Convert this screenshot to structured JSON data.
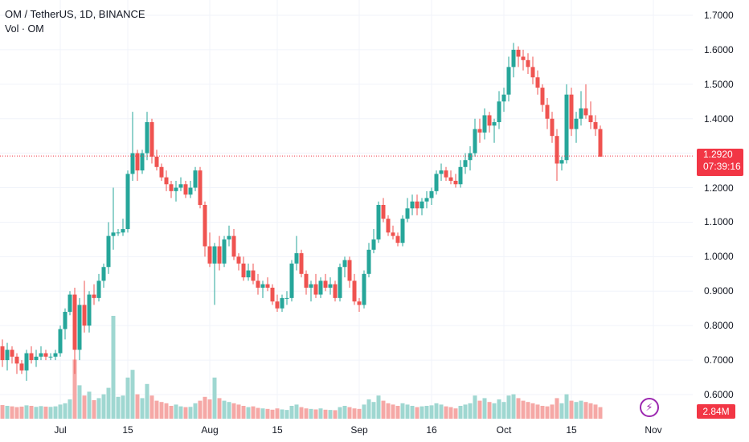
{
  "header": {
    "symbol_line": "OM / TetherUS, 1D, BINANCE",
    "volume_line": "Vol · OM"
  },
  "last_price": {
    "value": "1.2920",
    "countdown": "07:39:16"
  },
  "volume_last": "2.84M",
  "colors": {
    "up": "#26a69a",
    "down": "#ef5350",
    "vol_up": "#9fd7d1",
    "vol_down": "#f5a8a6",
    "grid": "#f0f3fa",
    "price_line": "#f23645"
  },
  "chart_data": {
    "type": "candlestick",
    "ylim": [
      0.58,
      1.72
    ],
    "y_ticks": [
      "1.7000",
      "1.6000",
      "1.5000",
      "1.4000",
      "1.3000",
      "1.2000",
      "1.1000",
      "1.0000",
      "0.9000",
      "0.8000",
      "0.7000",
      "0.6000"
    ],
    "x_ticks": [
      {
        "label": "Jul",
        "index": 12
      },
      {
        "label": "15",
        "index": 26
      },
      {
        "label": "Aug",
        "index": 43
      },
      {
        "label": "15",
        "index": 57
      },
      {
        "label": "Sep",
        "index": 74
      },
      {
        "label": "16",
        "index": 89
      },
      {
        "label": "Oct",
        "index": 104
      },
      {
        "label": "15",
        "index": 118
      },
      {
        "label": "Nov",
        "index": 135
      }
    ],
    "candles": [
      [
        0.74,
        0.76,
        0.68,
        0.7
      ],
      [
        0.7,
        0.75,
        0.67,
        0.73
      ],
      [
        0.73,
        0.74,
        0.69,
        0.71
      ],
      [
        0.71,
        0.72,
        0.66,
        0.69
      ],
      [
        0.69,
        0.7,
        0.66,
        0.67
      ],
      [
        0.67,
        0.73,
        0.64,
        0.72
      ],
      [
        0.72,
        0.74,
        0.69,
        0.7
      ],
      [
        0.7,
        0.73,
        0.68,
        0.71
      ],
      [
        0.71,
        0.74,
        0.7,
        0.72
      ],
      [
        0.72,
        0.73,
        0.7,
        0.71
      ],
      [
        0.71,
        0.72,
        0.7,
        0.71
      ],
      [
        0.71,
        0.73,
        0.7,
        0.72
      ],
      [
        0.72,
        0.8,
        0.71,
        0.79
      ],
      [
        0.79,
        0.85,
        0.76,
        0.84
      ],
      [
        0.84,
        0.9,
        0.83,
        0.89
      ],
      [
        0.89,
        0.91,
        0.66,
        0.73
      ],
      [
        0.73,
        0.88,
        0.7,
        0.86
      ],
      [
        0.86,
        0.93,
        0.78,
        0.8
      ],
      [
        0.8,
        0.9,
        0.78,
        0.89
      ],
      [
        0.89,
        0.92,
        0.86,
        0.88
      ],
      [
        0.88,
        0.95,
        0.87,
        0.93
      ],
      [
        0.93,
        0.98,
        0.91,
        0.97
      ],
      [
        0.97,
        1.1,
        0.95,
        1.06
      ],
      [
        1.06,
        1.2,
        1.02,
        1.07
      ],
      [
        1.07,
        1.08,
        1.06,
        1.07
      ],
      [
        1.07,
        1.11,
        1.06,
        1.08
      ],
      [
        1.08,
        1.25,
        1.07,
        1.24
      ],
      [
        1.24,
        1.42,
        1.22,
        1.3
      ],
      [
        1.3,
        1.31,
        1.22,
        1.25
      ],
      [
        1.25,
        1.31,
        1.24,
        1.3
      ],
      [
        1.3,
        1.42,
        1.28,
        1.39
      ],
      [
        1.39,
        1.4,
        1.27,
        1.29
      ],
      [
        1.29,
        1.31,
        1.25,
        1.26
      ],
      [
        1.26,
        1.27,
        1.22,
        1.23
      ],
      [
        1.23,
        1.25,
        1.19,
        1.21
      ],
      [
        1.21,
        1.22,
        1.17,
        1.19
      ],
      [
        1.19,
        1.22,
        1.16,
        1.2
      ],
      [
        1.2,
        1.23,
        1.19,
        1.21
      ],
      [
        1.21,
        1.22,
        1.17,
        1.18
      ],
      [
        1.18,
        1.22,
        1.17,
        1.2
      ],
      [
        1.2,
        1.26,
        1.19,
        1.25
      ],
      [
        1.25,
        1.26,
        1.14,
        1.15
      ],
      [
        1.15,
        1.16,
        1.0,
        1.03
      ],
      [
        1.03,
        1.07,
        0.97,
        0.98
      ],
      [
        0.98,
        1.04,
        0.86,
        1.03
      ],
      [
        1.03,
        1.06,
        0.96,
        0.98
      ],
      [
        0.98,
        1.06,
        0.97,
        1.05
      ],
      [
        1.05,
        1.09,
        1.03,
        1.06
      ],
      [
        1.06,
        1.08,
        0.99,
        1.0
      ],
      [
        1.0,
        1.01,
        0.96,
        0.98
      ],
      [
        0.98,
        1.0,
        0.93,
        0.94
      ],
      [
        0.94,
        0.98,
        0.93,
        0.96
      ],
      [
        0.96,
        0.98,
        0.92,
        0.93
      ],
      [
        0.93,
        0.95,
        0.89,
        0.91
      ],
      [
        0.91,
        0.93,
        0.88,
        0.92
      ],
      [
        0.92,
        0.94,
        0.9,
        0.91
      ],
      [
        0.91,
        0.92,
        0.86,
        0.87
      ],
      [
        0.87,
        0.89,
        0.84,
        0.85
      ],
      [
        0.85,
        0.89,
        0.84,
        0.88
      ],
      [
        0.88,
        0.9,
        0.86,
        0.88
      ],
      [
        0.88,
        0.99,
        0.87,
        0.98
      ],
      [
        0.98,
        1.06,
        0.96,
        1.01
      ],
      [
        1.01,
        1.02,
        0.94,
        0.95
      ],
      [
        0.95,
        0.96,
        0.89,
        0.91
      ],
      [
        0.91,
        0.93,
        0.87,
        0.92
      ],
      [
        0.92,
        0.95,
        0.88,
        0.89
      ],
      [
        0.89,
        0.94,
        0.88,
        0.93
      ],
      [
        0.93,
        0.95,
        0.9,
        0.91
      ],
      [
        0.91,
        0.94,
        0.89,
        0.92
      ],
      [
        0.92,
        0.93,
        0.87,
        0.88
      ],
      [
        0.88,
        0.98,
        0.87,
        0.97
      ],
      [
        0.97,
        1.0,
        0.94,
        0.99
      ],
      [
        0.99,
        1.0,
        0.91,
        0.93
      ],
      [
        0.93,
        0.95,
        0.86,
        0.87
      ],
      [
        0.87,
        0.88,
        0.84,
        0.86
      ],
      [
        0.86,
        0.96,
        0.85,
        0.95
      ],
      [
        0.95,
        1.04,
        0.94,
        1.02
      ],
      [
        1.02,
        1.08,
        1.01,
        1.05
      ],
      [
        1.05,
        1.16,
        1.04,
        1.15
      ],
      [
        1.15,
        1.17,
        1.1,
        1.11
      ],
      [
        1.11,
        1.12,
        1.06,
        1.07
      ],
      [
        1.07,
        1.09,
        1.05,
        1.06
      ],
      [
        1.06,
        1.07,
        1.03,
        1.04
      ],
      [
        1.04,
        1.12,
        1.03,
        1.11
      ],
      [
        1.11,
        1.17,
        1.1,
        1.14
      ],
      [
        1.14,
        1.18,
        1.12,
        1.16
      ],
      [
        1.16,
        1.18,
        1.12,
        1.14
      ],
      [
        1.14,
        1.17,
        1.12,
        1.16
      ],
      [
        1.16,
        1.19,
        1.14,
        1.17
      ],
      [
        1.17,
        1.2,
        1.15,
        1.19
      ],
      [
        1.19,
        1.25,
        1.18,
        1.24
      ],
      [
        1.24,
        1.27,
        1.22,
        1.25
      ],
      [
        1.25,
        1.26,
        1.22,
        1.23
      ],
      [
        1.23,
        1.25,
        1.21,
        1.22
      ],
      [
        1.22,
        1.24,
        1.2,
        1.21
      ],
      [
        1.21,
        1.28,
        1.2,
        1.26
      ],
      [
        1.26,
        1.3,
        1.24,
        1.28
      ],
      [
        1.28,
        1.32,
        1.25,
        1.3
      ],
      [
        1.3,
        1.4,
        1.29,
        1.37
      ],
      [
        1.37,
        1.4,
        1.33,
        1.36
      ],
      [
        1.36,
        1.43,
        1.34,
        1.41
      ],
      [
        1.41,
        1.42,
        1.36,
        1.38
      ],
      [
        1.38,
        1.4,
        1.33,
        1.39
      ],
      [
        1.39,
        1.48,
        1.37,
        1.45
      ],
      [
        1.45,
        1.49,
        1.42,
        1.47
      ],
      [
        1.47,
        1.58,
        1.45,
        1.55
      ],
      [
        1.55,
        1.62,
        1.52,
        1.6
      ],
      [
        1.6,
        1.61,
        1.55,
        1.58
      ],
      [
        1.58,
        1.6,
        1.54,
        1.57
      ],
      [
        1.57,
        1.59,
        1.53,
        1.55
      ],
      [
        1.55,
        1.58,
        1.5,
        1.52
      ],
      [
        1.52,
        1.54,
        1.47,
        1.49
      ],
      [
        1.49,
        1.5,
        1.42,
        1.44
      ],
      [
        1.44,
        1.46,
        1.37,
        1.4
      ],
      [
        1.4,
        1.42,
        1.33,
        1.35
      ],
      [
        1.35,
        1.37,
        1.22,
        1.27
      ],
      [
        1.27,
        1.29,
        1.25,
        1.28
      ],
      [
        1.28,
        1.5,
        1.27,
        1.47
      ],
      [
        1.47,
        1.49,
        1.35,
        1.37
      ],
      [
        1.37,
        1.42,
        1.33,
        1.4
      ],
      [
        1.4,
        1.48,
        1.38,
        1.43
      ],
      [
        1.43,
        1.5,
        1.4,
        1.41
      ],
      [
        1.41,
        1.45,
        1.37,
        1.39
      ],
      [
        1.39,
        1.41,
        1.35,
        1.37
      ],
      [
        1.37,
        1.38,
        1.29,
        1.29
      ]
    ],
    "volumes": [
      0.53,
      0.5,
      0.48,
      0.45,
      0.47,
      0.52,
      0.5,
      0.46,
      0.49,
      0.47,
      0.46,
      0.48,
      0.55,
      0.6,
      0.75,
      2.3,
      1.3,
      0.9,
      1.05,
      0.72,
      0.8,
      0.95,
      1.2,
      4.0,
      0.85,
      0.9,
      1.6,
      1.9,
      0.95,
      0.8,
      1.35,
      0.9,
      0.7,
      0.65,
      0.6,
      0.5,
      0.55,
      0.48,
      0.45,
      0.46,
      0.6,
      0.7,
      0.85,
      0.75,
      1.6,
      0.8,
      0.7,
      0.65,
      0.6,
      0.55,
      0.5,
      0.45,
      0.48,
      0.42,
      0.4,
      0.38,
      0.35,
      0.4,
      0.36,
      0.34,
      0.5,
      0.55,
      0.45,
      0.4,
      0.38,
      0.36,
      0.4,
      0.35,
      0.34,
      0.33,
      0.45,
      0.5,
      0.45,
      0.4,
      0.38,
      0.55,
      0.75,
      0.65,
      0.9,
      0.7,
      0.6,
      0.55,
      0.5,
      0.6,
      0.55,
      0.5,
      0.45,
      0.48,
      0.5,
      0.52,
      0.6,
      0.55,
      0.48,
      0.45,
      0.4,
      0.5,
      0.55,
      0.6,
      0.9,
      0.7,
      0.8,
      0.65,
      0.6,
      0.75,
      0.65,
      0.9,
      0.95,
      0.8,
      0.7,
      0.65,
      0.6,
      0.55,
      0.5,
      0.48,
      0.55,
      0.8,
      0.6,
      0.95,
      0.7,
      0.65,
      0.7,
      0.65,
      0.6,
      0.55,
      0.45
    ]
  }
}
